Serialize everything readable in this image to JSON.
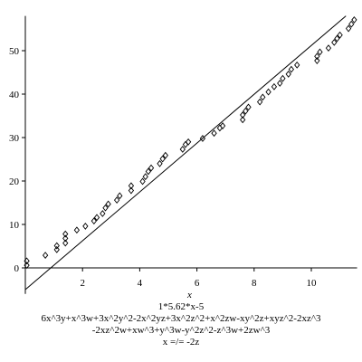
{
  "chart_data": {
    "type": "scatter",
    "title": "",
    "xlabel": "x",
    "ylabel": "",
    "xlim": [
      0,
      11.6
    ],
    "ylim": [
      -6,
      58
    ],
    "x_ticks": [
      2,
      4,
      6,
      8,
      10
    ],
    "y_ticks": [
      0,
      10,
      20,
      30,
      40,
      50
    ],
    "grid": false,
    "legend": "none",
    "marker": "open-diamond",
    "line": {
      "type": "line",
      "label": "",
      "slope": 5.62,
      "intercept": -5,
      "x_range": [
        0,
        11.6
      ]
    },
    "points": [
      {
        "x": 0.05,
        "y": 0.6
      },
      {
        "x": 0.05,
        "y": 1.6
      },
      {
        "x": 0.7,
        "y": 2.9
      },
      {
        "x": 1.1,
        "y": 4.2
      },
      {
        "x": 1.1,
        "y": 5.1
      },
      {
        "x": 1.4,
        "y": 5.7
      },
      {
        "x": 1.4,
        "y": 6.8
      },
      {
        "x": 1.4,
        "y": 7.8
      },
      {
        "x": 1.8,
        "y": 8.7
      },
      {
        "x": 2.1,
        "y": 9.6
      },
      {
        "x": 2.4,
        "y": 10.8
      },
      {
        "x": 2.5,
        "y": 11.6
      },
      {
        "x": 2.7,
        "y": 12.5
      },
      {
        "x": 2.8,
        "y": 13.8
      },
      {
        "x": 2.9,
        "y": 14.7
      },
      {
        "x": 3.2,
        "y": 15.6
      },
      {
        "x": 3.3,
        "y": 16.6
      },
      {
        "x": 3.7,
        "y": 17.8
      },
      {
        "x": 3.7,
        "y": 18.9
      },
      {
        "x": 4.1,
        "y": 19.9
      },
      {
        "x": 4.2,
        "y": 21.0
      },
      {
        "x": 4.3,
        "y": 22.2
      },
      {
        "x": 4.4,
        "y": 23.0
      },
      {
        "x": 4.7,
        "y": 24.0
      },
      {
        "x": 4.8,
        "y": 25.1
      },
      {
        "x": 4.9,
        "y": 25.9
      },
      {
        "x": 5.5,
        "y": 27.3
      },
      {
        "x": 5.6,
        "y": 28.4
      },
      {
        "x": 5.7,
        "y": 29.0
      },
      {
        "x": 6.2,
        "y": 29.8
      },
      {
        "x": 6.6,
        "y": 31.0
      },
      {
        "x": 6.8,
        "y": 32.2
      },
      {
        "x": 6.9,
        "y": 32.7
      },
      {
        "x": 7.6,
        "y": 34.1
      },
      {
        "x": 7.6,
        "y": 35.2
      },
      {
        "x": 7.7,
        "y": 36.1
      },
      {
        "x": 7.8,
        "y": 37.0
      },
      {
        "x": 8.2,
        "y": 38.2
      },
      {
        "x": 8.3,
        "y": 39.3
      },
      {
        "x": 8.5,
        "y": 40.5
      },
      {
        "x": 8.7,
        "y": 41.7
      },
      {
        "x": 8.9,
        "y": 42.5
      },
      {
        "x": 9.0,
        "y": 43.6
      },
      {
        "x": 9.2,
        "y": 44.6
      },
      {
        "x": 9.3,
        "y": 45.7
      },
      {
        "x": 9.5,
        "y": 46.7
      },
      {
        "x": 10.2,
        "y": 47.7
      },
      {
        "x": 10.2,
        "y": 48.7
      },
      {
        "x": 10.3,
        "y": 49.7
      },
      {
        "x": 10.6,
        "y": 50.6
      },
      {
        "x": 10.8,
        "y": 51.9
      },
      {
        "x": 10.9,
        "y": 52.8
      },
      {
        "x": 11.0,
        "y": 53.6
      },
      {
        "x": 11.3,
        "y": 55.1
      },
      {
        "x": 11.4,
        "y": 56.1
      },
      {
        "x": 11.5,
        "y": 57.1
      }
    ]
  },
  "caption": {
    "line1": "1*5.62*x-5",
    "line2": "6x^3y+x^3w+3x^2y^2-2x^2yz+3x^2z^2+x^2zw-xy^2z+xyz^2-2xz^3",
    "line3": "-2xz^2w+xw^3+y^3w-y^2z^2-z^3w+2zw^3",
    "line4": "x =/= -2z"
  },
  "colors": {
    "axis": "#000000",
    "marker": "#000000",
    "line": "#000000",
    "background": "#ffffff"
  }
}
